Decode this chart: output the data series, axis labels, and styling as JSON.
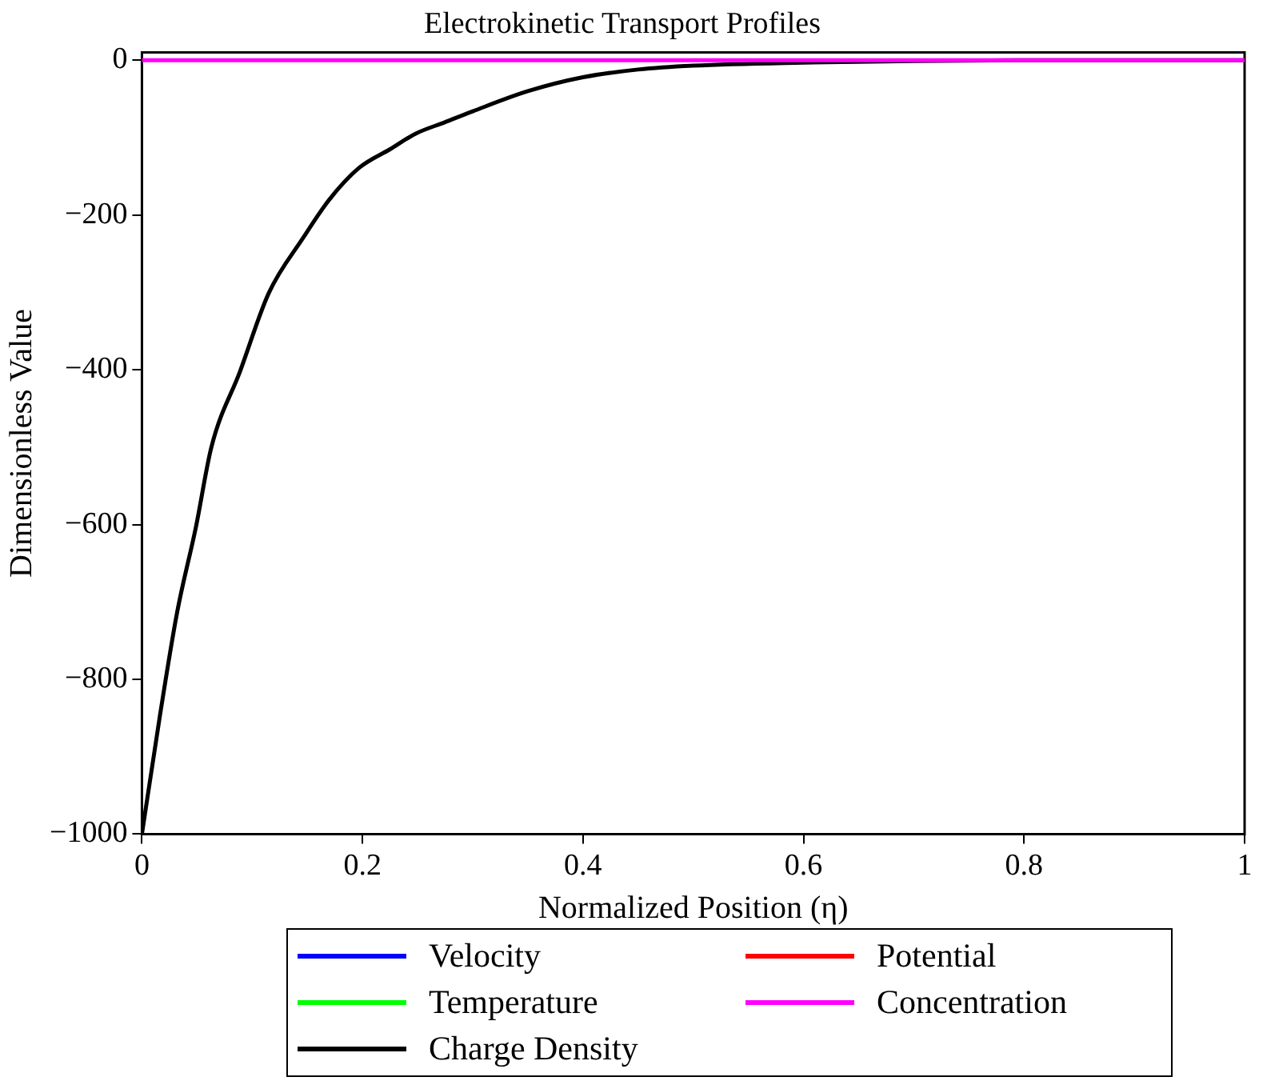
{
  "chart_data": {
    "type": "line",
    "title": "Electrokinetic Transport Profiles",
    "xlabel": "Normalized Position (η)",
    "ylabel": "Dimensionless Value",
    "xlim": [
      0,
      1
    ],
    "ylim": [
      -1000,
      10
    ],
    "xticks": [
      0,
      0.2,
      0.4,
      0.6,
      0.8,
      1
    ],
    "yticks": [
      0,
      -200,
      -400,
      -600,
      -800,
      -1000
    ],
    "grid": false,
    "legend": "bottom",
    "line_style": "solid",
    "marker": "none",
    "series": [
      {
        "name": "Velocity",
        "color": "#0000ff"
      },
      {
        "name": "Potential",
        "color": "#ff0000"
      },
      {
        "name": "Temperature",
        "color": "#00ff00"
      },
      {
        "name": "Concentration",
        "color": "#ff00ff",
        "x": [
          0,
          1
        ],
        "values": [
          0,
          0
        ]
      },
      {
        "name": "Charge Density",
        "color": "#000000",
        "x": [
          0,
          0.016,
          0.032,
          0.049,
          0.063,
          0.089,
          0.115,
          0.146,
          0.17,
          0.197,
          0.225,
          0.248,
          0.275,
          0.3,
          0.35,
          0.4,
          0.45,
          0.5,
          0.6,
          0.7,
          0.8,
          0.9,
          1
        ],
        "values": [
          -1000,
          -850,
          -713,
          -603,
          -500,
          -402,
          -301,
          -230,
          -180,
          -139,
          -115,
          -95,
          -80,
          -66,
          -40,
          -22,
          -12,
          -7,
          -3,
          -1,
          0,
          0,
          0
        ]
      }
    ]
  }
}
